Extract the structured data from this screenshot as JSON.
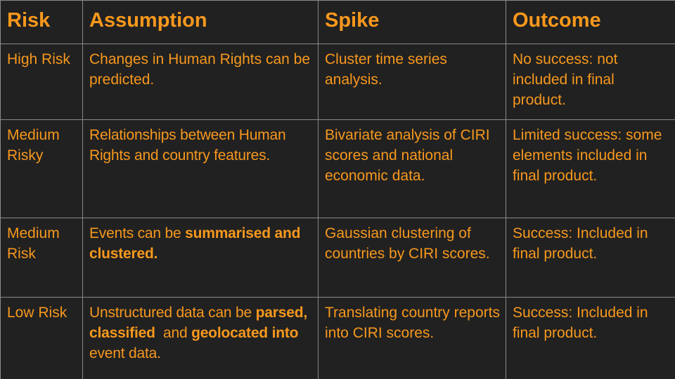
{
  "headers": {
    "risk": "Risk",
    "assumption": "Assumption",
    "spike": "Spike",
    "outcome": "Outcome"
  },
  "rows": [
    {
      "risk": "High Risk",
      "assumption": "Changes in Human Rights can be predicted.",
      "spike": "Cluster time series analysis.",
      "outcome": "No success: not included in final product."
    },
    {
      "risk": "Medium Risky",
      "assumption": "Relationships between Human Rights and country features.",
      "spike": "Bivariate analysis of CIRI scores and national economic data.",
      "outcome": "Limited success: some elements included in final product."
    },
    {
      "risk": "Medium Risk",
      "assumption_parts": {
        "plain": "Events can be ",
        "bold": "summarised and clustered."
      },
      "spike": "Gaussian clustering of countries by CIRI scores.",
      "outcome": "Success: Included in final product."
    },
    {
      "risk": "Low Risk",
      "assumption_parts": {
        "plain1": "Unstructured data can be ",
        "bold1": "parsed, classified",
        "plain2": "  and ",
        "bold2": "geolocated into",
        "plain3": "  event data."
      },
      "spike": "Translating country reports into CIRI scores.",
      "outcome": "Success: Included in final product."
    }
  ],
  "colors": {
    "background": "#212121",
    "text": "#f7981d",
    "border": "#8a8a8a"
  }
}
